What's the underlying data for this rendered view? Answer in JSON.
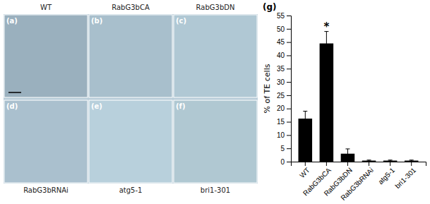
{
  "chart_data": {
    "type": "bar",
    "categories": [
      "WT",
      "RabG3bCA",
      "RabG3bDN",
      "RabG3bRNAi",
      "atg5-1",
      "bri1-301"
    ],
    "values": [
      16.2,
      44.5,
      3.0,
      0.4,
      0.4,
      0.4
    ],
    "errors": [
      2.8,
      4.5,
      1.8,
      0.2,
      0.2,
      0.2
    ],
    "color": "#000000",
    "ylabel": "% of TE cells",
    "ylim": [
      0,
      55
    ],
    "yticks": [
      0,
      5,
      10,
      15,
      20,
      25,
      30,
      35,
      40,
      45,
      50,
      55
    ],
    "annotations": [
      {
        "text": "*",
        "category": "RabG3bCA"
      },
      {
        "text": "(g)"
      }
    ],
    "panels": [
      {
        "sublabel": "(a)",
        "label": "WT"
      },
      {
        "sublabel": "(b)",
        "label": "RabG3bCA"
      },
      {
        "sublabel": "(c)",
        "label": "RabG3bDN"
      },
      {
        "sublabel": "(d)",
        "label": "RabG3bRNAi"
      },
      {
        "sublabel": "(e)",
        "label": "atg5-1"
      },
      {
        "sublabel": "(f)",
        "label": "bri1-301"
      }
    ]
  }
}
